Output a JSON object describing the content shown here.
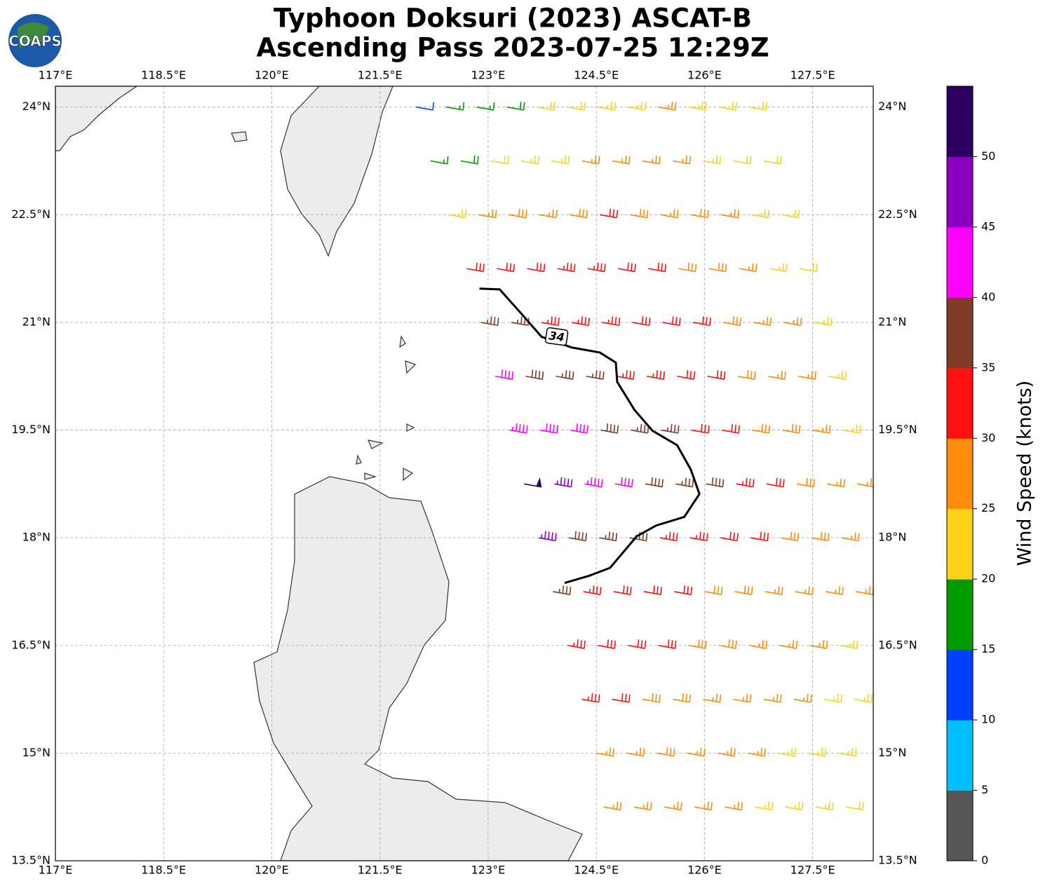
{
  "header": {
    "title": [
      "Typhoon Doksuri (2023) ASCAT-B",
      "Ascending Pass 2023-07-25 12:29Z"
    ],
    "logo": "COAPS"
  },
  "map": {
    "xlim": [
      117,
      128.34
    ],
    "ylim": [
      13.5,
      24.29
    ],
    "grid": true,
    "lon_ticks": [
      {
        "value": 117,
        "label": "117°E"
      },
      {
        "value": 118.5,
        "label": "118.5°E"
      },
      {
        "value": 120,
        "label": "120°E"
      },
      {
        "value": 121.5,
        "label": "121.5°E"
      },
      {
        "value": 123,
        "label": "123°E"
      },
      {
        "value": 124.5,
        "label": "124.5°E"
      },
      {
        "value": 126,
        "label": "126°E"
      },
      {
        "value": 127.5,
        "label": "127.5°E"
      }
    ],
    "lat_ticks": [
      {
        "value": 13.5,
        "label": "13.5°N"
      },
      {
        "value": 15,
        "label": "15°N"
      },
      {
        "value": 16.5,
        "label": "16.5°N"
      },
      {
        "value": 18,
        "label": "18°N"
      },
      {
        "value": 19.5,
        "label": "19.5°N"
      },
      {
        "value": 21,
        "label": "21°N"
      },
      {
        "value": 22.5,
        "label": "22.5°N"
      },
      {
        "value": 24,
        "label": "24°N"
      }
    ]
  },
  "colorbar": {
    "label": "Wind Speed (knots)",
    "lim": [
      0,
      55
    ],
    "ticks": [
      0,
      5,
      10,
      15,
      20,
      25,
      30,
      35,
      40,
      45,
      50
    ],
    "colors": [
      "#555555",
      "#00bfff",
      "#0040ff",
      "#009900",
      "#ffd21a",
      "#ff8c0a",
      "#ff1010",
      "#7f3b26",
      "#ff00ff",
      "#8b00c0",
      "#2b0060"
    ]
  },
  "contour": {
    "level": 34,
    "color": "#000000",
    "points": [
      [
        122.88,
        21.47
      ],
      [
        123.16,
        21.46
      ],
      [
        123.48,
        21.1
      ],
      [
        123.74,
        20.8
      ],
      [
        124.16,
        20.65
      ],
      [
        124.55,
        20.58
      ],
      [
        124.77,
        20.44
      ],
      [
        124.79,
        20.17
      ],
      [
        125.03,
        19.78
      ],
      [
        125.28,
        19.49
      ],
      [
        125.62,
        19.29
      ],
      [
        125.81,
        18.95
      ],
      [
        125.93,
        18.61
      ],
      [
        125.72,
        18.29
      ],
      [
        125.33,
        18.17
      ],
      [
        125.06,
        18.02
      ],
      [
        124.69,
        17.58
      ],
      [
        124.4,
        17.47
      ],
      [
        124.06,
        17.37
      ]
    ]
  },
  "wind": {
    "lon_step": 0.42,
    "rows": [
      {
        "lat": 24.0,
        "lon_start": 122.0,
        "speeds": [
          12,
          16,
          17,
          18,
          22,
          22,
          23,
          24,
          26,
          24,
          22,
          22
        ]
      },
      {
        "lat": 23.25,
        "lon_start": 122.2,
        "speeds": [
          17,
          18,
          22,
          23,
          24,
          26,
          27,
          26,
          27,
          24,
          22,
          22
        ]
      },
      {
        "lat": 22.5,
        "lon_start": 122.45,
        "speeds": [
          24,
          26,
          28,
          27,
          29,
          31,
          28,
          27,
          28,
          26,
          23,
          22
        ]
      },
      {
        "lat": 21.75,
        "lon_start": 122.7,
        "speeds": [
          30,
          31,
          32,
          33,
          33,
          32,
          31,
          29,
          28,
          26,
          24,
          22
        ]
      },
      {
        "lat": 21.0,
        "lon_start": 122.9,
        "speeds": [
          37,
          36,
          33,
          34,
          33,
          32,
          31,
          30,
          28,
          27,
          25,
          23
        ]
      },
      {
        "lat": 20.25,
        "lon_start": 123.1,
        "speeds": [
          42,
          38,
          37,
          36,
          33,
          33,
          32,
          31,
          29,
          27,
          26,
          24
        ]
      },
      {
        "lat": 19.5,
        "lon_start": 123.3,
        "speeds": [
          43,
          42,
          41,
          38,
          37,
          36,
          32,
          31,
          29,
          28,
          26,
          24
        ]
      },
      {
        "lat": 18.75,
        "lon_start": 123.5,
        "speeds": [
          52,
          47,
          44,
          42,
          39,
          37,
          38,
          33,
          31,
          29,
          27,
          25
        ]
      },
      {
        "lat": 18.0,
        "lon_start": 123.7,
        "speeds": [
          47,
          38,
          37,
          36,
          34,
          33,
          32,
          31,
          29,
          28,
          26
        ]
      },
      {
        "lat": 17.25,
        "lon_start": 123.9,
        "speeds": [
          37,
          33,
          32,
          32,
          31,
          29,
          28,
          27,
          27,
          26,
          25
        ]
      },
      {
        "lat": 16.5,
        "lon_start": 124.1,
        "speeds": [
          33,
          32,
          32,
          31,
          29,
          28,
          27,
          26,
          25,
          24
        ]
      },
      {
        "lat": 15.75,
        "lon_start": 124.3,
        "speeds": [
          33,
          31,
          29,
          28,
          27,
          27,
          26,
          25,
          24,
          23
        ]
      },
      {
        "lat": 15.0,
        "lon_start": 124.5,
        "speeds": [
          27,
          27,
          28,
          26,
          26,
          25,
          24,
          23,
          23
        ]
      },
      {
        "lat": 14.25,
        "lon_start": 124.6,
        "speeds": [
          27,
          27,
          26,
          25,
          25,
          24,
          24,
          23,
          22
        ]
      }
    ]
  }
}
